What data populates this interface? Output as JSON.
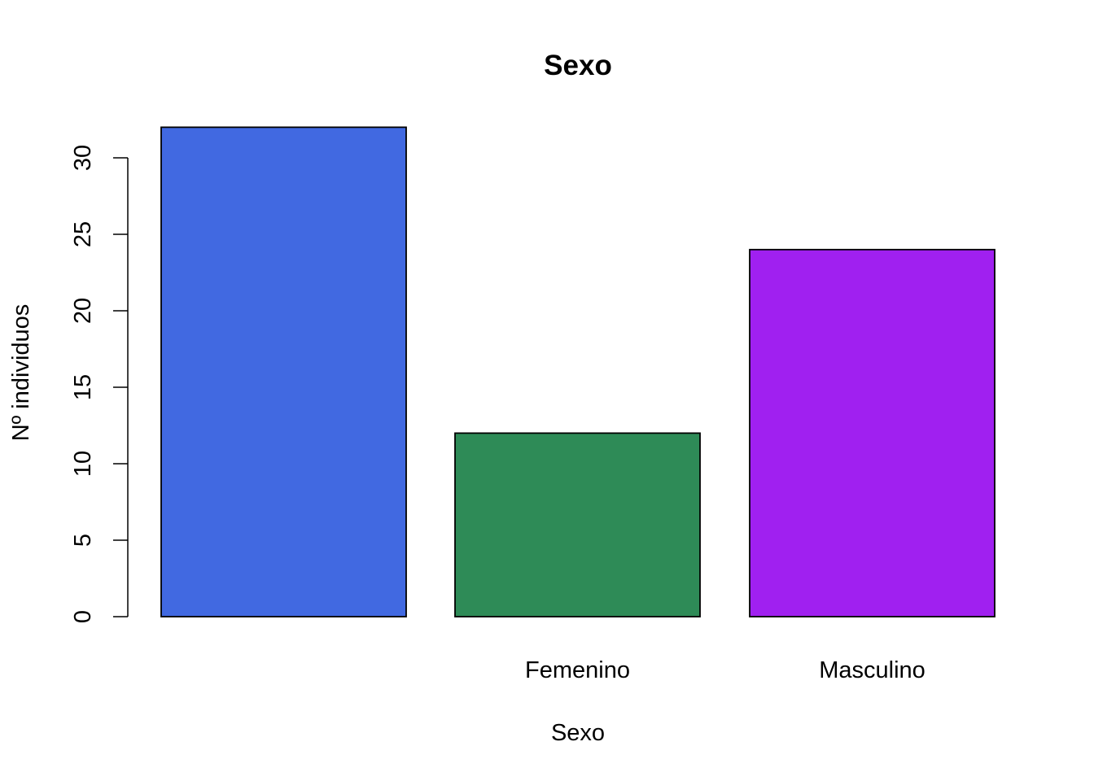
{
  "chart_data": {
    "type": "bar",
    "title": "Sexo",
    "xlabel": "Sexo",
    "ylabel": "Nº individuos",
    "categories": [
      "",
      "Femenino",
      "Masculino"
    ],
    "values": [
      32,
      12,
      24
    ],
    "colors": [
      "#4169e1",
      "#2e8b57",
      "#a020f0"
    ],
    "ylim": [
      0,
      32
    ],
    "yticks": [
      0,
      5,
      10,
      15,
      20,
      25,
      30
    ],
    "grid": false,
    "legend": "none"
  }
}
